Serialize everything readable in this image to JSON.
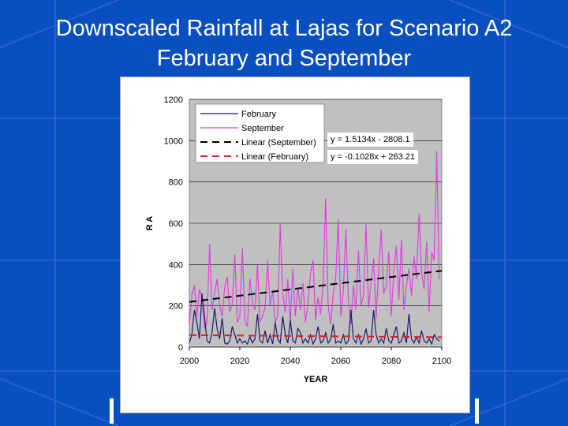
{
  "slide": {
    "title_line_1": "Downscaled Rainfall at Lajas for Scenario A2",
    "title_line_2": "February and September",
    "background_color": "#0a4fc0"
  },
  "chart_data": {
    "type": "line",
    "title": "",
    "xlabel": "YEAR",
    "ylabel": "R\nA",
    "xlim": [
      2000,
      2100
    ],
    "ylim": [
      0,
      1200
    ],
    "xticks": [
      2000,
      2020,
      2040,
      2060,
      2080,
      2100
    ],
    "yticks": [
      0,
      200,
      400,
      600,
      800,
      1000,
      1200
    ],
    "grid": true,
    "legend_position": "top-left",
    "plot_background": "#c0c0c0",
    "series": [
      {
        "name": "February",
        "color": "#1a1a6e",
        "x": [
          2000,
          2001,
          2002,
          2003,
          2004,
          2005,
          2006,
          2007,
          2008,
          2009,
          2010,
          2011,
          2012,
          2013,
          2014,
          2015,
          2016,
          2017,
          2018,
          2019,
          2020,
          2021,
          2022,
          2023,
          2024,
          2025,
          2026,
          2027,
          2028,
          2029,
          2030,
          2031,
          2032,
          2033,
          2034,
          2035,
          2036,
          2037,
          2038,
          2039,
          2040,
          2041,
          2042,
          2043,
          2044,
          2045,
          2046,
          2047,
          2048,
          2049,
          2050,
          2051,
          2052,
          2053,
          2054,
          2055,
          2056,
          2057,
          2058,
          2059,
          2060,
          2061,
          2062,
          2063,
          2064,
          2065,
          2066,
          2067,
          2068,
          2069,
          2070,
          2071,
          2072,
          2073,
          2074,
          2075,
          2076,
          2077,
          2078,
          2079,
          2080,
          2081,
          2082,
          2083,
          2084,
          2085,
          2086,
          2087,
          2088,
          2089,
          2090,
          2091,
          2092,
          2093,
          2094,
          2095,
          2096,
          2097,
          2098,
          2099
        ],
        "values": [
          20,
          60,
          180,
          120,
          40,
          260,
          150,
          30,
          20,
          70,
          190,
          90,
          40,
          140,
          20,
          15,
          30,
          100,
          60,
          20,
          40,
          20,
          30,
          15,
          50,
          20,
          40,
          160,
          30,
          20,
          80,
          20,
          60,
          15,
          120,
          40,
          20,
          150,
          60,
          20,
          130,
          30,
          20,
          90,
          70,
          20,
          40,
          20,
          60,
          15,
          40,
          100,
          20,
          30,
          70,
          20,
          40,
          110,
          20,
          30,
          20,
          60,
          15,
          30,
          180,
          40,
          20,
          60,
          15,
          40,
          90,
          20,
          30,
          180,
          60,
          20,
          40,
          20,
          90,
          30,
          20,
          60,
          100,
          20,
          30,
          70,
          20,
          160,
          40,
          20,
          50,
          20,
          80,
          30,
          20,
          40,
          15,
          60,
          40,
          30
        ]
      },
      {
        "name": "September",
        "color": "#e040e0",
        "x": [
          2000,
          2001,
          2002,
          2003,
          2004,
          2005,
          2006,
          2007,
          2008,
          2009,
          2010,
          2011,
          2012,
          2013,
          2014,
          2015,
          2016,
          2017,
          2018,
          2019,
          2020,
          2021,
          2022,
          2023,
          2024,
          2025,
          2026,
          2027,
          2028,
          2029,
          2030,
          2031,
          2032,
          2033,
          2034,
          2035,
          2036,
          2037,
          2038,
          2039,
          2040,
          2041,
          2042,
          2043,
          2044,
          2045,
          2046,
          2047,
          2048,
          2049,
          2050,
          2051,
          2052,
          2053,
          2054,
          2055,
          2056,
          2057,
          2058,
          2059,
          2060,
          2061,
          2062,
          2063,
          2064,
          2065,
          2066,
          2067,
          2068,
          2069,
          2070,
          2071,
          2072,
          2073,
          2074,
          2075,
          2076,
          2077,
          2078,
          2079,
          2080,
          2081,
          2082,
          2083,
          2084,
          2085,
          2086,
          2087,
          2088,
          2089,
          2090,
          2091,
          2092,
          2093,
          2094,
          2095,
          2096,
          2097,
          2098,
          2099
        ],
        "values": [
          110,
          250,
          300,
          150,
          280,
          240,
          90,
          120,
          500,
          180,
          260,
          330,
          200,
          150,
          290,
          340,
          170,
          210,
          450,
          120,
          150,
          480,
          130,
          100,
          330,
          220,
          180,
          400,
          120,
          150,
          190,
          420,
          200,
          270,
          120,
          150,
          600,
          260,
          170,
          330,
          120,
          380,
          150,
          290,
          180,
          310,
          120,
          210,
          360,
          420,
          130,
          240,
          160,
          310,
          720,
          200,
          110,
          260,
          340,
          620,
          150,
          270,
          570,
          240,
          110,
          300,
          180,
          470,
          200,
          250,
          600,
          190,
          310,
          430,
          140,
          380,
          570,
          260,
          300,
          460,
          150,
          370,
          490,
          230,
          520,
          180,
          300,
          380,
          250,
          440,
          330,
          650,
          360,
          280,
          510,
          170,
          460,
          420,
          950,
          330
        ]
      },
      {
        "name": "Linear (September)",
        "color": "#000000",
        "dash": "dashed",
        "equation": "y = 1.5134x - 2808.1",
        "x": [
          2000,
          2100
        ],
        "values": [
          219,
          370
        ]
      },
      {
        "name": "Linear (February)",
        "color": "#e02020",
        "dash": "dashed",
        "equation": "y = -0.1028x + 263.21",
        "x": [
          2000,
          2100
        ],
        "values": [
          58,
          48
        ]
      }
    ]
  }
}
